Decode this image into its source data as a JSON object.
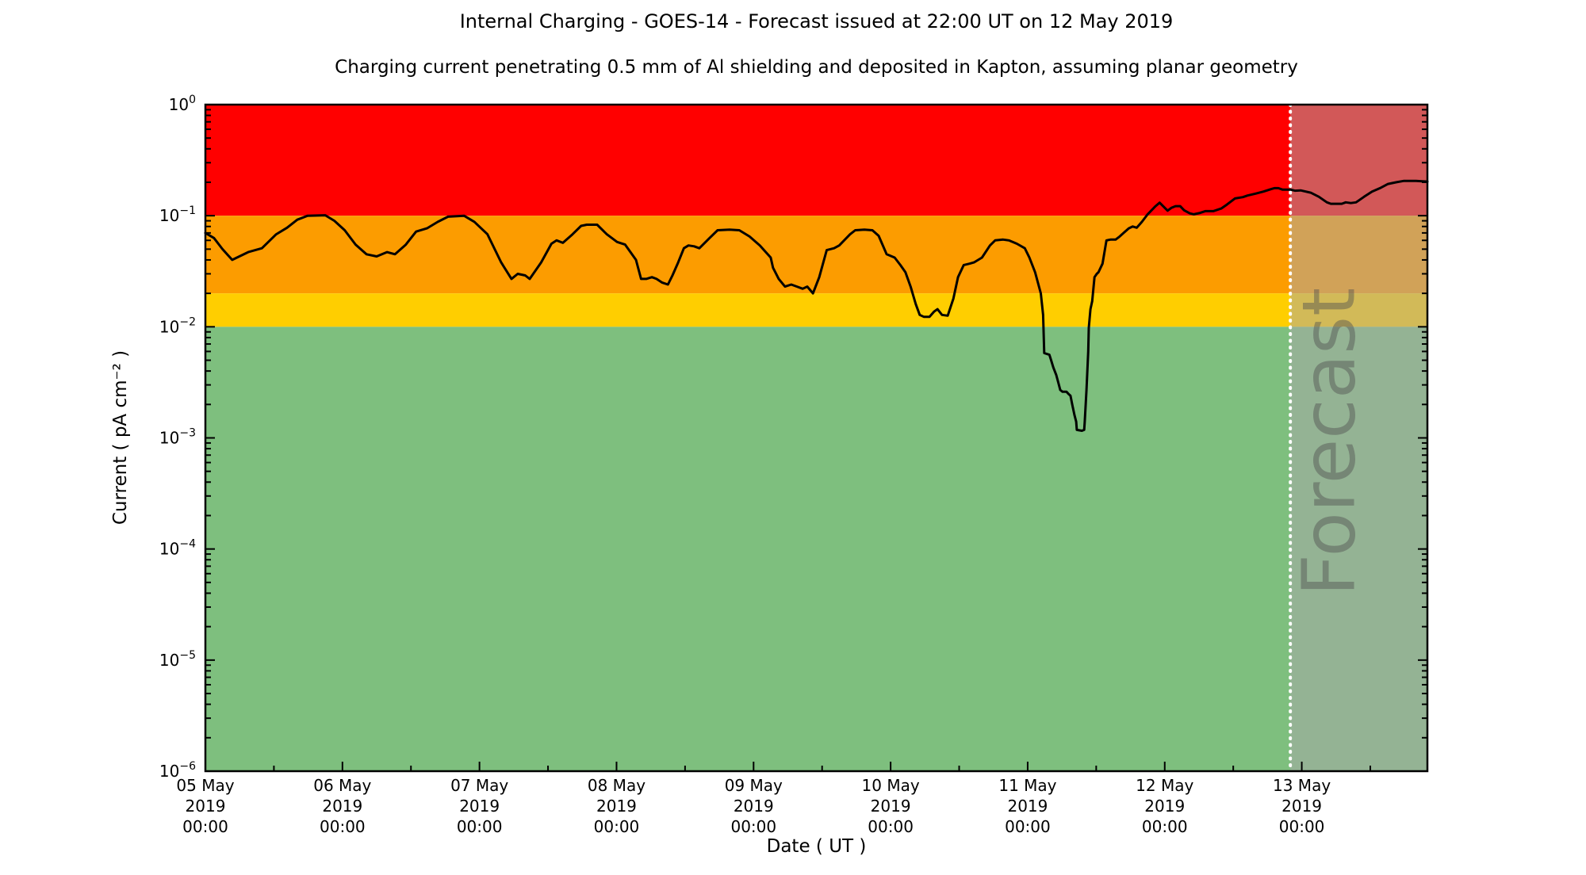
{
  "title": "Internal Charging - GOES-14 - Forecast issued at 22:00 UT on 12 May 2019",
  "subtitle": "Charging current penetrating 0.5 mm of Al shielding and deposited in Kapton, assuming planar geometry",
  "axes": {
    "xlabel": "Date ( UT )",
    "ylabel": "Current ( pA cm⁻² )",
    "x_major_ticks": [
      {
        "hour": 0,
        "lines": [
          "05 May",
          "2019",
          "00:00"
        ]
      },
      {
        "hour": 24,
        "lines": [
          "06 May",
          "2019",
          "00:00"
        ]
      },
      {
        "hour": 48,
        "lines": [
          "07 May",
          "2019",
          "00:00"
        ]
      },
      {
        "hour": 72,
        "lines": [
          "08 May",
          "2019",
          "00:00"
        ]
      },
      {
        "hour": 96,
        "lines": [
          "09 May",
          "2019",
          "00:00"
        ]
      },
      {
        "hour": 120,
        "lines": [
          "10 May",
          "2019",
          "00:00"
        ]
      },
      {
        "hour": 144,
        "lines": [
          "11 May",
          "2019",
          "00:00"
        ]
      },
      {
        "hour": 168,
        "lines": [
          "12 May",
          "2019",
          "00:00"
        ]
      },
      {
        "hour": 192,
        "lines": [
          "13 May",
          "2019",
          "00:00"
        ]
      }
    ],
    "x_minor_tick_hours": [
      12,
      36,
      60,
      84,
      108,
      132,
      156,
      180,
      204
    ],
    "y_tick_exponents": [
      0,
      -1,
      -2,
      -3,
      -4,
      -5,
      -6
    ],
    "y_tick_labels": [
      "10⁰",
      "10⁻¹",
      "10⁻²",
      "10⁻³",
      "10⁻⁴",
      "10⁻⁵",
      "10⁻⁶"
    ]
  },
  "forecast": {
    "label": "Forecast",
    "issue_time": "22:00 UT on 12 May 2019",
    "start_hour": 190,
    "overlay_color": "rgba(169,169,169,0.52)",
    "divider_color": "#ffffff",
    "label_color": "rgba(80,80,80,0.45)"
  },
  "chart_data": {
    "type": "line",
    "title": "Internal Charging - GOES-14 - Forecast issued at 22:00 UT on 12 May 2019",
    "xlabel": "Date ( UT )",
    "ylabel": "Current ( pA cm^-2 )",
    "x_unit": "hours since 2019-05-05 00:00 UT",
    "xlim": [
      0,
      214
    ],
    "ylim": [
      1e-06,
      1.0
    ],
    "yscale": "log",
    "grid": false,
    "bands": [
      {
        "label": "red",
        "range": [
          0.1,
          1.0
        ],
        "color": "#FF0000"
      },
      {
        "label": "orange",
        "range": [
          0.02,
          0.1
        ],
        "color": "#FC9C00"
      },
      {
        "label": "yellow",
        "range": [
          0.01,
          0.02
        ],
        "color": "#FFCE00"
      },
      {
        "label": "green",
        "range": [
          1e-06,
          0.01
        ],
        "color": "#7EBF7E"
      }
    ],
    "forecast_start_hour": 190,
    "forecast_end_hour": 214,
    "series": [
      {
        "name": "charging current",
        "color": "#000000",
        "width": 3,
        "points": [
          [
            0,
            0.07
          ],
          [
            1.5,
            0.063
          ],
          [
            3,
            0.05
          ],
          [
            4.7,
            0.04
          ],
          [
            7.5,
            0.047
          ],
          [
            9.9,
            0.051
          ],
          [
            12.4,
            0.068
          ],
          [
            14.3,
            0.078
          ],
          [
            16.1,
            0.092
          ],
          [
            17.9,
            0.1
          ],
          [
            21,
            0.101
          ],
          [
            22.6,
            0.09
          ],
          [
            24.4,
            0.074
          ],
          [
            26.3,
            0.055
          ],
          [
            28.2,
            0.045
          ],
          [
            30,
            0.043
          ],
          [
            31.8,
            0.047
          ],
          [
            33.2,
            0.045
          ],
          [
            35.1,
            0.055
          ],
          [
            36.9,
            0.072
          ],
          [
            38.8,
            0.077
          ],
          [
            40.7,
            0.088
          ],
          [
            42.5,
            0.098
          ],
          [
            45.3,
            0.1
          ],
          [
            47.1,
            0.088
          ],
          [
            49.4,
            0.068
          ],
          [
            51.8,
            0.038
          ],
          [
            53.6,
            0.027
          ],
          [
            54.7,
            0.03
          ],
          [
            56,
            0.029
          ],
          [
            56.8,
            0.027
          ],
          [
            58.8,
            0.038
          ],
          [
            60.6,
            0.056
          ],
          [
            61.5,
            0.06
          ],
          [
            62.6,
            0.057
          ],
          [
            64.3,
            0.068
          ],
          [
            65.8,
            0.081
          ],
          [
            66.8,
            0.083
          ],
          [
            68.6,
            0.083
          ],
          [
            70.3,
            0.068
          ],
          [
            72.1,
            0.058
          ],
          [
            73.5,
            0.055
          ],
          [
            75.4,
            0.04
          ],
          [
            76.3,
            0.027
          ],
          [
            77.2,
            0.027
          ],
          [
            78.2,
            0.028
          ],
          [
            79,
            0.027
          ],
          [
            80,
            0.025
          ],
          [
            81,
            0.024
          ],
          [
            81.8,
            0.029
          ],
          [
            82.8,
            0.038
          ],
          [
            83.8,
            0.051
          ],
          [
            84.6,
            0.054
          ],
          [
            85.6,
            0.053
          ],
          [
            86.5,
            0.051
          ],
          [
            88.3,
            0.063
          ],
          [
            89.7,
            0.074
          ],
          [
            91.8,
            0.075
          ],
          [
            93.5,
            0.074
          ],
          [
            95.3,
            0.065
          ],
          [
            97.1,
            0.054
          ],
          [
            99,
            0.042
          ],
          [
            99.4,
            0.034
          ],
          [
            100.4,
            0.027
          ],
          [
            101.5,
            0.023
          ],
          [
            102.6,
            0.024
          ],
          [
            103.6,
            0.023
          ],
          [
            104.6,
            0.022
          ],
          [
            105.4,
            0.023
          ],
          [
            106.4,
            0.02
          ],
          [
            107.5,
            0.028
          ],
          [
            108.8,
            0.049
          ],
          [
            110.1,
            0.051
          ],
          [
            111,
            0.054
          ],
          [
            112.9,
            0.068
          ],
          [
            113.8,
            0.074
          ],
          [
            115.4,
            0.075
          ],
          [
            116.8,
            0.074
          ],
          [
            117.9,
            0.066
          ],
          [
            119.3,
            0.045
          ],
          [
            120.7,
            0.042
          ],
          [
            121.7,
            0.036
          ],
          [
            122.6,
            0.031
          ],
          [
            123.5,
            0.023
          ],
          [
            124.4,
            0.016
          ],
          [
            125.1,
            0.0128
          ],
          [
            125.8,
            0.0123
          ],
          [
            126.8,
            0.0123
          ],
          [
            127.6,
            0.0137
          ],
          [
            128.2,
            0.0144
          ],
          [
            129,
            0.0128
          ],
          [
            130,
            0.0126
          ],
          [
            131,
            0.018
          ],
          [
            131.8,
            0.028
          ],
          [
            132.8,
            0.036
          ],
          [
            133.8,
            0.037
          ],
          [
            134.6,
            0.038
          ],
          [
            136,
            0.042
          ],
          [
            137.4,
            0.054
          ],
          [
            138.3,
            0.06
          ],
          [
            139.7,
            0.061
          ],
          [
            140.7,
            0.06
          ],
          [
            142.1,
            0.056
          ],
          [
            143.5,
            0.051
          ],
          [
            144.3,
            0.042
          ],
          [
            145.3,
            0.031
          ],
          [
            146.3,
            0.02
          ],
          [
            146.7,
            0.0128
          ],
          [
            146.9,
            0.0058
          ],
          [
            147.8,
            0.0056
          ],
          [
            148.1,
            0.005
          ],
          [
            148.5,
            0.0043
          ],
          [
            149,
            0.0037
          ],
          [
            149.4,
            0.0031
          ],
          [
            149.7,
            0.0027
          ],
          [
            150.1,
            0.0026
          ],
          [
            150.8,
            0.0026
          ],
          [
            151.1,
            0.0025
          ],
          [
            151.5,
            0.0024
          ],
          [
            151.8,
            0.002
          ],
          [
            152.2,
            0.0016
          ],
          [
            152.5,
            0.0014
          ],
          [
            152.6,
            0.00118
          ],
          [
            153.5,
            0.00116
          ],
          [
            153.9,
            0.00118
          ],
          [
            154,
            0.0014
          ],
          [
            154.3,
            0.0027
          ],
          [
            154.6,
            0.006
          ],
          [
            154.7,
            0.0098
          ],
          [
            155,
            0.0144
          ],
          [
            155.3,
            0.017
          ],
          [
            155.7,
            0.028
          ],
          [
            156.1,
            0.03
          ],
          [
            156.4,
            0.031
          ],
          [
            157.1,
            0.037
          ],
          [
            157.8,
            0.06
          ],
          [
            158.5,
            0.061
          ],
          [
            159.4,
            0.061
          ],
          [
            160.1,
            0.065
          ],
          [
            160.8,
            0.07
          ],
          [
            161.7,
            0.077
          ],
          [
            162.4,
            0.08
          ],
          [
            163.1,
            0.078
          ],
          [
            164,
            0.088
          ],
          [
            165,
            0.103
          ],
          [
            166.4,
            0.122
          ],
          [
            167.1,
            0.131
          ],
          [
            168.5,
            0.111
          ],
          [
            169.2,
            0.118
          ],
          [
            169.9,
            0.122
          ],
          [
            170.7,
            0.122
          ],
          [
            171.4,
            0.112
          ],
          [
            172.4,
            0.105
          ],
          [
            173.1,
            0.103
          ],
          [
            174.2,
            0.106
          ],
          [
            175.1,
            0.11
          ],
          [
            176.5,
            0.11
          ],
          [
            177.9,
            0.116
          ],
          [
            178.9,
            0.126
          ],
          [
            180.3,
            0.143
          ],
          [
            181.7,
            0.147
          ],
          [
            182.5,
            0.152
          ],
          [
            183.9,
            0.158
          ],
          [
            185.3,
            0.165
          ],
          [
            186.7,
            0.174
          ],
          [
            187.2,
            0.177
          ],
          [
            187.9,
            0.177
          ],
          [
            188.6,
            0.172
          ],
          [
            190,
            0.172
          ],
          [
            190.8,
            0.168
          ],
          [
            191.8,
            0.169
          ],
          [
            193.6,
            0.161
          ],
          [
            195,
            0.148
          ],
          [
            196.4,
            0.132
          ],
          [
            197.1,
            0.128
          ],
          [
            198.1,
            0.128
          ],
          [
            199,
            0.128
          ],
          [
            199.7,
            0.132
          ],
          [
            200.6,
            0.13
          ],
          [
            201.5,
            0.132
          ],
          [
            202.9,
            0.148
          ],
          [
            204.3,
            0.165
          ],
          [
            205.7,
            0.177
          ],
          [
            207.1,
            0.193
          ],
          [
            208.5,
            0.2
          ],
          [
            209.9,
            0.206
          ],
          [
            212,
            0.206
          ],
          [
            214,
            0.203
          ]
        ]
      }
    ]
  }
}
